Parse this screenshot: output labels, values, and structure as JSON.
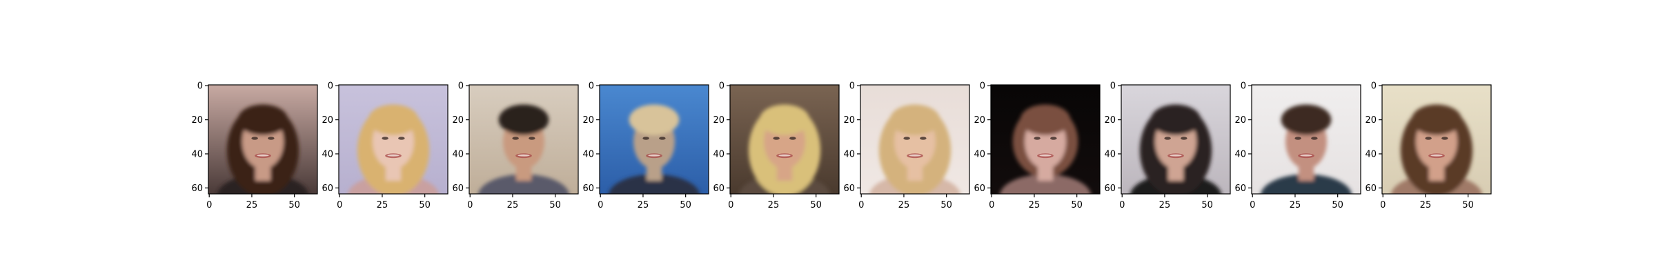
{
  "figure": {
    "panel_count": 10,
    "x_ticks": [
      "0",
      "25",
      "50"
    ],
    "y_ticks": [
      "0",
      "20",
      "40",
      "60"
    ],
    "image_extent": [
      0,
      64
    ],
    "panels": [
      {
        "subject": "woman with dark brown hair, smiling",
        "skin": "#c89a86",
        "hair": "#3a2418",
        "bg_top": "#c8aaa3",
        "bg_bottom": "#4a3a38",
        "cloth": "#2a2424",
        "hair_style": "long"
      },
      {
        "subject": "woman with blonde hair, pale lavender background",
        "skin": "#e9c6b4",
        "hair": "#d9b270",
        "bg_top": "#c8c2dc",
        "bg_bottom": "#b7b0cf",
        "cloth": "#c9a0a0",
        "hair_style": "long"
      },
      {
        "subject": "man with dark hair, smiling",
        "skin": "#c99a7f",
        "hair": "#2c241e",
        "bg_top": "#d8cdbf",
        "bg_bottom": "#bfae99",
        "cloth": "#5a5a6a",
        "hair_style": "short"
      },
      {
        "subject": "man with short light hair, blue patterned background",
        "skin": "#b9a089",
        "hair": "#d8c39a",
        "bg_top": "#4a88d0",
        "bg_bottom": "#2c5ea8",
        "cloth": "#2a3246",
        "hair_style": "short"
      },
      {
        "subject": "woman with blonde hair, smiling",
        "skin": "#d7a587",
        "hair": "#d9c07a",
        "bg_top": "#7a6452",
        "bg_bottom": "#4a3a2e",
        "cloth": "#5c4c40",
        "hair_style": "long"
      },
      {
        "subject": "woman with blonde hair, light background",
        "skin": "#e6c0a3",
        "hair": "#d4b27d",
        "bg_top": "#e8ddd8",
        "bg_bottom": "#f0e8e4",
        "cloth": "#d6b8a8",
        "hair_style": "long"
      },
      {
        "subject": "woman with brown bob hair, black background",
        "skin": "#d6aaa0",
        "hair": "#7a5040",
        "bg_top": "#080606",
        "bg_bottom": "#120c0c",
        "cloth": "#8c6a66",
        "hair_style": "bob"
      },
      {
        "subject": "woman with dark hair, smiling, grey background",
        "skin": "#cfa493",
        "hair": "#2a2020",
        "bg_top": "#d9d6dc",
        "bg_bottom": "#bcb6bd",
        "cloth": "#1a1a1a",
        "hair_style": "long"
      },
      {
        "subject": "man with dark hair, smiling",
        "skin": "#c39080",
        "hair": "#3c2c24",
        "bg_top": "#f0eeee",
        "bg_bottom": "#e6e2e2",
        "cloth": "#2a3a4a",
        "hair_style": "short"
      },
      {
        "subject": "woman with brown hair, smiling",
        "skin": "#d2a08a",
        "hair": "#5a3a28",
        "bg_top": "#e8e0c8",
        "bg_bottom": "#d8cdb3",
        "cloth": "#a07a68",
        "hair_style": "long"
      }
    ]
  }
}
